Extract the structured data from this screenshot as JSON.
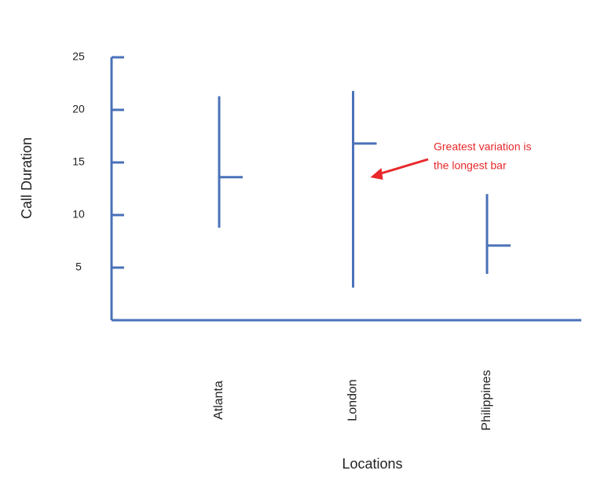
{
  "chart_data": {
    "type": "hilo",
    "y_label": "Call Duration",
    "x_label": "Locations",
    "categories": [
      "Atlanta",
      "London",
      "Philippines"
    ],
    "high": [
      21.3,
      21.8,
      12.0
    ],
    "low": [
      8.8,
      3.1,
      4.4
    ],
    "close": [
      13.6,
      16.8,
      7.1
    ],
    "color": "#4a72b8",
    "ylim": [
      0,
      25
    ],
    "yticks": [
      5,
      10,
      15,
      20,
      25
    ],
    "annotation": {
      "lines": [
        "Greatest variation is",
        "the longest bar"
      ],
      "color": "#e8282b",
      "category": 1
    }
  }
}
